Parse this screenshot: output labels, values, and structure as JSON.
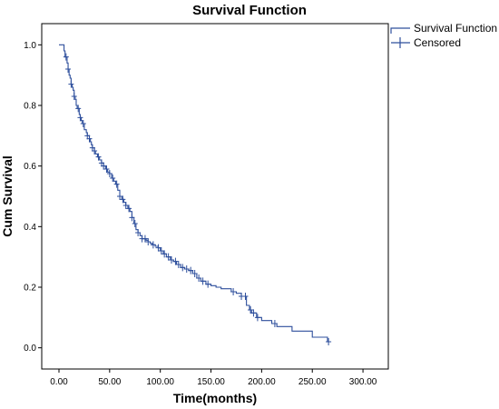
{
  "chart_data": {
    "type": "line",
    "title": "Survival Function",
    "xlabel": "Time(months)",
    "ylabel": "Cum Survival",
    "xlim": [
      -17,
      325
    ],
    "ylim": [
      -0.07,
      1.07
    ],
    "x_ticks": [
      "0.00",
      "50.00",
      "100.00",
      "150.00",
      "200.00",
      "250.00",
      "300.00"
    ],
    "x_tick_values": [
      0,
      50,
      100,
      150,
      200,
      250,
      300
    ],
    "y_ticks": [
      "0.0",
      "0.2",
      "0.4",
      "0.6",
      "0.8",
      "1.0"
    ],
    "y_tick_values": [
      0,
      0.2,
      0.4,
      0.6,
      0.8,
      1.0
    ],
    "grid": false,
    "legend_position": "outside-top-right",
    "line_color": "#2e4f9c",
    "series": [
      {
        "name": "Survival Function",
        "x": [
          0,
          5,
          6,
          8,
          9,
          10,
          11,
          12,
          13,
          14,
          15,
          16,
          17,
          18,
          20,
          21,
          22,
          23,
          25,
          27,
          28,
          30,
          31,
          32,
          33,
          35,
          36,
          38,
          40,
          42,
          44,
          46,
          48,
          50,
          52,
          54,
          56,
          58,
          60,
          62,
          64,
          66,
          68,
          70,
          72,
          74,
          76,
          78,
          80,
          82,
          84,
          86,
          88,
          90,
          92,
          95,
          98,
          100,
          103,
          106,
          110,
          113,
          116,
          120,
          124,
          128,
          132,
          136,
          140,
          145,
          150,
          155,
          160,
          170,
          175,
          180,
          185,
          188,
          190,
          195,
          200,
          210,
          215,
          230,
          250,
          265
        ],
        "y": [
          1.0,
          0.98,
          0.96,
          0.94,
          0.92,
          0.9,
          0.89,
          0.87,
          0.86,
          0.85,
          0.83,
          0.82,
          0.8,
          0.79,
          0.77,
          0.76,
          0.75,
          0.74,
          0.72,
          0.71,
          0.7,
          0.69,
          0.68,
          0.67,
          0.66,
          0.65,
          0.64,
          0.63,
          0.62,
          0.61,
          0.6,
          0.59,
          0.58,
          0.575,
          0.56,
          0.55,
          0.54,
          0.52,
          0.5,
          0.49,
          0.48,
          0.47,
          0.46,
          0.45,
          0.43,
          0.41,
          0.39,
          0.38,
          0.37,
          0.36,
          0.36,
          0.355,
          0.35,
          0.345,
          0.34,
          0.335,
          0.33,
          0.32,
          0.31,
          0.3,
          0.29,
          0.285,
          0.275,
          0.265,
          0.26,
          0.255,
          0.245,
          0.23,
          0.22,
          0.21,
          0.205,
          0.2,
          0.195,
          0.185,
          0.18,
          0.17,
          0.14,
          0.125,
          0.115,
          0.1,
          0.09,
          0.08,
          0.07,
          0.055,
          0.035,
          0.02
        ]
      },
      {
        "name": "Censored",
        "x": [
          7,
          9,
          12,
          15,
          19,
          21,
          24,
          28,
          30,
          33,
          35,
          39,
          42,
          44,
          47,
          50,
          53,
          57,
          60,
          63,
          66,
          69,
          72,
          75,
          78,
          82,
          85,
          88,
          93,
          98,
          101,
          104,
          108,
          111,
          115,
          118,
          122,
          126,
          130,
          134,
          138,
          142,
          147,
          172,
          180,
          184,
          189,
          192,
          196,
          213,
          266
        ]
      }
    ]
  }
}
